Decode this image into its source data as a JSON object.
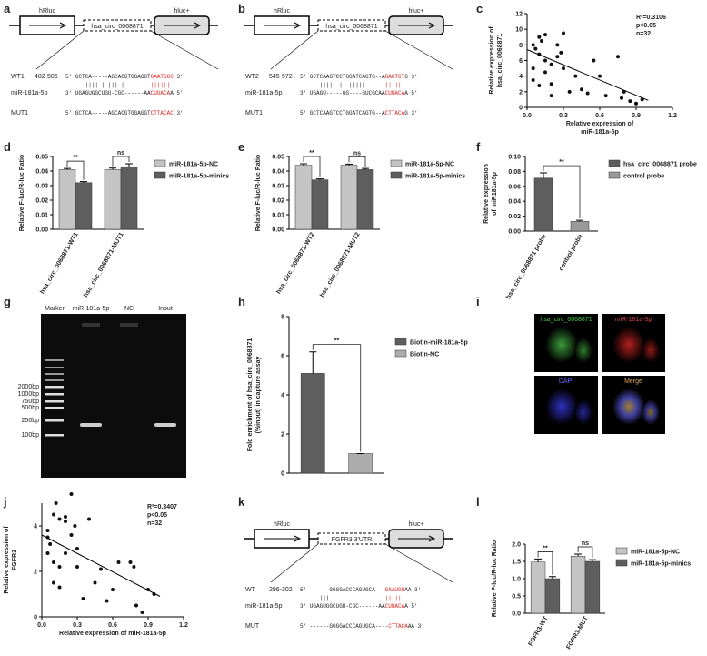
{
  "panel_labels": [
    "a",
    "b",
    "c",
    "d",
    "e",
    "f",
    "g",
    "h",
    "i",
    "j",
    "k",
    "l"
  ],
  "construct_a": {
    "left": "hRluc",
    "insert": "hsa_circ_0068871",
    "right": "hluc+",
    "wt_label": "WT1",
    "wt_pos": "482-506",
    "wt": [
      "5' GCTCA-----AGCACGTGGAGGT",
      "GAATGGC",
      " 3'"
    ],
    "pairs": [
      "|||| | ||| |",
      "||||||"
    ],
    "mir_label": "miR-181a-5p",
    "mir": [
      "3' UGAGUGGCUGU-CGC------AA",
      "CUUACA",
      "A 5'"
    ],
    "mut_label": "MUT1",
    "mut": [
      "5' GCTCA-----AGCACGTGGAGGT",
      "CTTACAC",
      " 3'"
    ]
  },
  "construct_b": {
    "left": "hRluc",
    "insert": "hsa_circ_0068871",
    "right": "hluc+",
    "wt_label": "WT2",
    "wt_pos": "545-572",
    "wt": [
      "5' GCTCAAGTCCTGGATCAGTG--A",
      "GAGTGT",
      "G 3'"
    ],
    "pairs": [
      "||||| || |||||",
      "||:|||"
    ],
    "mir_label": "miR-181a-5p",
    "mir": [
      "3' UGAGU-----GG----GUCGCAA",
      "CUUACA",
      "A 5'"
    ],
    "mut_label": "MUT1",
    "mut": [
      "5' GCTCAAGTCCTGGATCAGTG--A",
      "CTTACA",
      "G 3'"
    ]
  },
  "construct_k": {
    "left": "hRluc",
    "insert": "FGFR3 3'UTR",
    "right": "hluc+",
    "wt_label": "WT",
    "wt_pos": "296-302",
    "wt": [
      "5' ------GGGGACCCAGUGCA---",
      "GAAUGU",
      "AA 3'"
    ],
    "pairs": [
      "|||",
      "||||||"
    ],
    "mir_label": "miR-181a-5p",
    "mir": [
      "3' UGAGUGGCUGU-CGC------AA",
      "CUUACA",
      "A 5'"
    ],
    "mut_label": "MUT",
    "mut": [
      "5' ------GGGGACCCAGUGCA----",
      "CTTACA",
      "AA 3'"
    ]
  },
  "gel": {
    "lanes": [
      "Marker",
      "miR-181a-5p",
      "NC",
      "Input"
    ],
    "ladder": [
      "2000bp",
      "1000bp",
      "750bp",
      "500bp",
      "250bp",
      "100bp"
    ]
  },
  "microscopy": {
    "channels": [
      "hsa_circ_0068871",
      "miR-181a-5p",
      "DAPI",
      "Merge"
    ]
  },
  "chart_data": [
    {
      "type": "scatter",
      "ylabel": [
        "Relative expression of",
        "hsa_circ_0068871"
      ],
      "xlabel": [
        "Relative expression of",
        "miR-181a-5p"
      ],
      "annotations": [
        "R²=0.3106",
        "p<0.05",
        "n=32"
      ],
      "x": [
        0.05,
        0.07,
        0.1,
        0.12,
        0.15,
        0.05,
        0.1,
        0.15,
        0.2,
        0.25,
        0.28,
        0.3,
        0.25,
        0.05,
        0.1,
        0.15,
        0.2,
        0.3,
        0.35,
        0.4,
        0.45,
        0.5,
        0.55,
        0.6,
        0.65,
        0.75,
        0.78,
        0.8,
        0.85,
        0.9,
        0.95,
        0.2
      ],
      "values": [
        8,
        7.5,
        9,
        8.5,
        9.3,
        5,
        6.8,
        6,
        5.5,
        6.5,
        7,
        9.5,
        8,
        3.5,
        2.8,
        4.5,
        3,
        5,
        2,
        4,
        2.3,
        1.8,
        6,
        4,
        1.5,
        6.5,
        1.2,
        2,
        0.8,
        0.5,
        1,
        1.5
      ],
      "trendline": {
        "x": [
          0,
          1
        ],
        "y": [
          7.4,
          0.9
        ]
      },
      "xlim": [
        0,
        1.2
      ],
      "xticks": [
        {
          "value": 0,
          "label": "0.0"
        },
        0.3,
        0.6,
        0.9,
        1.2
      ],
      "ylim": [
        0,
        12
      ],
      "yticks": [
        0,
        2,
        4,
        6,
        8,
        10,
        12
      ]
    },
    {
      "type": "bar",
      "ylabel": [
        "Relative F-luc/R-luc Ratio"
      ],
      "categories": [
        "hsa_circ_0068871-WT1",
        "hsa_circ_0068871-MUT1"
      ],
      "series": [
        {
          "name": "miR-181a-5p-NC",
          "color": "#c4c4c4",
          "values": [
            0.041,
            0.041
          ],
          "errors": [
            0.0008,
            0.001
          ]
        },
        {
          "name": "miR-181a-5p-minics",
          "color": "#5e5e5e",
          "values": [
            0.032,
            0.043
          ],
          "errors": [
            0.0007,
            0.002
          ]
        }
      ],
      "significance": [
        "**",
        "ns"
      ],
      "ylim": [
        0,
        0.05
      ],
      "yticks": [
        {
          "value": 0,
          "label": "0.00"
        },
        {
          "value": 0.01,
          "label": "0.01"
        },
        {
          "value": 0.02,
          "label": "0.02"
        },
        {
          "value": 0.03,
          "label": "0.03"
        },
        {
          "value": 0.04,
          "label": "0.04"
        },
        {
          "value": 0.05,
          "label": "0.05"
        }
      ]
    },
    {
      "type": "bar",
      "ylabel": [
        "Relative F-luc/R-luc Ratio"
      ],
      "categories": [
        "hsa_circ_0068871-WT2",
        "hsa_circ_0068871-MUT2"
      ],
      "series": [
        {
          "name": "miR-181a-5p-NC",
          "color": "#c4c4c4",
          "values": [
            0.044,
            0.044
          ],
          "errors": [
            0.001,
            0.0008
          ]
        },
        {
          "name": "miR-181a-5p-minics",
          "color": "#5e5e5e",
          "values": [
            0.034,
            0.041
          ],
          "errors": [
            0.0006,
            0.0008
          ]
        }
      ],
      "significance": [
        "**",
        "ns"
      ],
      "ylim": [
        0,
        0.05
      ],
      "yticks": [
        {
          "value": 0,
          "label": "0.00"
        },
        {
          "value": 0.01,
          "label": "0.01"
        },
        {
          "value": 0.02,
          "label": "0.02"
        },
        {
          "value": 0.03,
          "label": "0.03"
        },
        {
          "value": 0.04,
          "label": "0.04"
        },
        {
          "value": 0.05,
          "label": "0.05"
        }
      ]
    },
    {
      "type": "bar",
      "ylabel": [
        "Relative expression",
        "of miR181a-5p"
      ],
      "categories": [
        "hsa_circ_0068871 probe",
        "control probe"
      ],
      "values": [
        0.071,
        0.013
      ],
      "errors": [
        0.007,
        0.0015
      ],
      "colors": [
        "#5e5e5e",
        "#9a9a9a"
      ],
      "significance": [
        "**"
      ],
      "ylim": [
        0,
        0.1
      ],
      "yticks": [
        {
          "value": 0,
          "label": "0.00"
        },
        {
          "value": 0.02,
          "label": "0.02"
        },
        {
          "value": 0.04,
          "label": "0.04"
        },
        {
          "value": 0.06,
          "label": "0.06"
        },
        {
          "value": 0.08,
          "label": "0.08"
        },
        {
          "value": 0.1,
          "label": "0.10"
        }
      ]
    },
    {
      "type": "bar",
      "ylabel": [
        "Fold enrichment of hsa_circ_0068871",
        "(%input) in capture assay"
      ],
      "categories": [
        "Biotin-miR-181a-5p",
        "Biotin-NC"
      ],
      "values": [
        5.1,
        1.0
      ],
      "errors": [
        1.1,
        0
      ],
      "colors": [
        "#5e5e5e",
        "#acacac"
      ],
      "significance": [
        "**"
      ],
      "ylim": [
        0,
        8
      ],
      "yticks": [
        0,
        2,
        4,
        6,
        8
      ]
    },
    {
      "type": "scatter",
      "ylabel": [
        "Relative expression of",
        "FGFR3"
      ],
      "xlabel": [
        "Relative expression of miR-181a-5p"
      ],
      "annotations": [
        "R²=0.3407",
        "p<0.05",
        "n=32"
      ],
      "x": [
        0.05,
        0.07,
        0.1,
        0.12,
        0.15,
        0.05,
        0.1,
        0.15,
        0.2,
        0.25,
        0.28,
        0.3,
        0.25,
        0.05,
        0.1,
        0.15,
        0.2,
        0.3,
        0.35,
        0.4,
        0.45,
        0.5,
        0.55,
        0.6,
        0.65,
        0.75,
        0.78,
        0.8,
        0.85,
        0.9,
        0.95,
        0.2
      ],
      "values": [
        3.5,
        3.2,
        4.5,
        5,
        4.3,
        2.8,
        1.5,
        2.2,
        4.4,
        5.4,
        4,
        3,
        3.6,
        3.8,
        2.4,
        1.3,
        2.8,
        2.2,
        0.8,
        4.3,
        1.5,
        2.1,
        0.7,
        1.2,
        2.4,
        2.4,
        2.2,
        0.5,
        0.2,
        1.2,
        1,
        4.2
      ],
      "trendline": {
        "x": [
          0,
          1
        ],
        "y": [
          3.6,
          0.9
        ]
      },
      "xlim": [
        0,
        1.2
      ],
      "xticks": [
        {
          "value": 0,
          "label": "0.0"
        },
        0.3,
        0.6,
        0.9,
        1.2
      ],
      "ylim": [
        0,
        5
      ],
      "yticks": [
        0,
        2,
        4
      ]
    },
    {
      "type": "bar",
      "ylabel": [
        "Relative F-luc/R-luc Ratio"
      ],
      "categories": [
        "FGFR3-WT",
        "FGFR3-MUT"
      ],
      "series": [
        {
          "name": "miR-181a-5p-NC",
          "color": "#c4c4c4",
          "values": [
            1.48,
            1.65
          ],
          "errors": [
            0.09,
            0.06
          ]
        },
        {
          "name": "miR-181a-5p-minics",
          "color": "#5e5e5e",
          "values": [
            1.0,
            1.5
          ],
          "errors": [
            0.06,
            0.05
          ]
        }
      ],
      "significance": [
        "**",
        "ns"
      ],
      "ylim": [
        0,
        2
      ],
      "yticks": [
        {
          "value": 0,
          "label": "0.0"
        },
        {
          "value": 0.5,
          "label": "0.5"
        },
        {
          "value": 1,
          "label": "1.0"
        },
        {
          "value": 1.5,
          "label": "1.5"
        },
        {
          "value": 2,
          "label": "2.0"
        }
      ]
    }
  ]
}
